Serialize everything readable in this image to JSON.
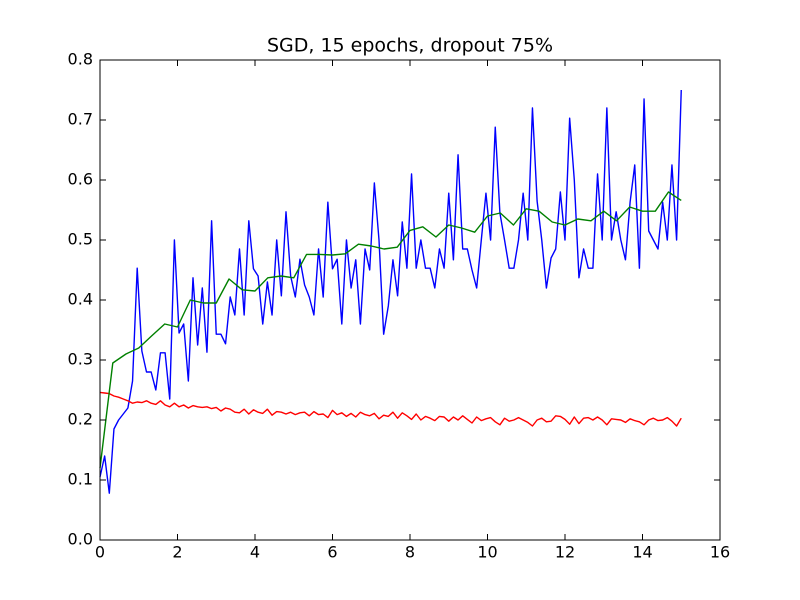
{
  "chart_data": {
    "type": "line",
    "title": "SGD, 15 epochs, dropout 75%",
    "xlim": [
      0,
      16
    ],
    "ylim": [
      0,
      0.8
    ],
    "xticks": [
      0,
      2,
      4,
      6,
      8,
      10,
      12,
      14,
      16
    ],
    "yticks": [
      {
        "value": 0,
        "label": "0.0"
      },
      0.1,
      0.2,
      0.3,
      0.4,
      0.5,
      0.6,
      0.7,
      0.8
    ],
    "grid": false,
    "series": [
      {
        "color": "#0000ff",
        "x": [
          0,
          0.12,
          0.24,
          0.36,
          0.48,
          0.6,
          0.72,
          0.84,
          0.96,
          1.08,
          1.2,
          1.32,
          1.44,
          1.56,
          1.68,
          1.8,
          1.92,
          2.04,
          2.16,
          2.28,
          2.4,
          2.52,
          2.64,
          2.76,
          2.88,
          3,
          3.12,
          3.24,
          3.36,
          3.48,
          3.6,
          3.72,
          3.84,
          3.96,
          4.08,
          4.2,
          4.32,
          4.44,
          4.56,
          4.68,
          4.8,
          4.92,
          5.04,
          5.16,
          5.28,
          5.4,
          5.52,
          5.64,
          5.76,
          5.88,
          6,
          6.12,
          6.24,
          6.36,
          6.48,
          6.6,
          6.72,
          6.84,
          6.96,
          7.08,
          7.2,
          7.32,
          7.44,
          7.56,
          7.68,
          7.8,
          7.92,
          8.04,
          8.16,
          8.28,
          8.4,
          8.52,
          8.64,
          8.76,
          8.88,
          9,
          9.12,
          9.24,
          9.36,
          9.48,
          9.6,
          9.72,
          9.84,
          9.96,
          10.08,
          10.2,
          10.32,
          10.44,
          10.56,
          10.68,
          10.8,
          10.92,
          11.04,
          11.16,
          11.28,
          11.4,
          11.52,
          11.64,
          11.76,
          11.88,
          12,
          12.12,
          12.24,
          12.36,
          12.48,
          12.6,
          12.72,
          12.84,
          12.96,
          13.08,
          13.2,
          13.32,
          13.44,
          13.56,
          13.68,
          13.8,
          13.92,
          14.04,
          14.16,
          14.28,
          14.4,
          14.52,
          14.64,
          14.76,
          14.88,
          15
        ],
        "values": [
          0.105,
          0.14,
          0.078,
          0.185,
          0.2,
          0.21,
          0.22,
          0.265,
          0.453,
          0.315,
          0.28,
          0.28,
          0.25,
          0.312,
          0.312,
          0.235,
          0.5,
          0.345,
          0.36,
          0.265,
          0.437,
          0.325,
          0.42,
          0.313,
          0.532,
          0.343,
          0.343,
          0.327,
          0.405,
          0.375,
          0.485,
          0.375,
          0.532,
          0.452,
          0.44,
          0.36,
          0.43,
          0.375,
          0.5,
          0.407,
          0.547,
          0.44,
          0.405,
          0.468,
          0.425,
          0.405,
          0.375,
          0.485,
          0.405,
          0.563,
          0.452,
          0.468,
          0.36,
          0.5,
          0.42,
          0.467,
          0.36,
          0.485,
          0.45,
          0.595,
          0.5,
          0.343,
          0.39,
          0.467,
          0.407,
          0.53,
          0.453,
          0.61,
          0.453,
          0.5,
          0.453,
          0.453,
          0.42,
          0.485,
          0.453,
          0.578,
          0.467,
          0.642,
          0.485,
          0.485,
          0.45,
          0.42,
          0.5,
          0.578,
          0.5,
          0.688,
          0.545,
          0.5,
          0.453,
          0.453,
          0.5,
          0.578,
          0.5,
          0.72,
          0.565,
          0.5,
          0.42,
          0.47,
          0.485,
          0.58,
          0.5,
          0.703,
          0.6,
          0.437,
          0.485,
          0.453,
          0.453,
          0.61,
          0.5,
          0.72,
          0.5,
          0.547,
          0.5,
          0.467,
          0.563,
          0.625,
          0.453,
          0.735,
          0.515,
          0.5,
          0.485,
          0.563,
          0.5,
          0.625,
          0.5,
          0.75
        ]
      },
      {
        "color": "#ff0000",
        "x": [
          0,
          0.12,
          0.24,
          0.36,
          0.48,
          0.6,
          0.72,
          0.84,
          0.96,
          1.08,
          1.2,
          1.32,
          1.44,
          1.56,
          1.68,
          1.8,
          1.92,
          2.04,
          2.16,
          2.28,
          2.4,
          2.52,
          2.64,
          2.76,
          2.88,
          3,
          3.12,
          3.24,
          3.36,
          3.48,
          3.6,
          3.72,
          3.84,
          3.96,
          4.08,
          4.2,
          4.32,
          4.44,
          4.56,
          4.68,
          4.8,
          4.92,
          5.04,
          5.16,
          5.28,
          5.4,
          5.52,
          5.64,
          5.76,
          5.88,
          6,
          6.12,
          6.24,
          6.36,
          6.48,
          6.6,
          6.72,
          6.84,
          6.96,
          7.08,
          7.2,
          7.32,
          7.44,
          7.56,
          7.68,
          7.8,
          7.92,
          8.04,
          8.16,
          8.28,
          8.4,
          8.52,
          8.64,
          8.76,
          8.88,
          9,
          9.12,
          9.24,
          9.36,
          9.48,
          9.6,
          9.72,
          9.84,
          9.96,
          10.08,
          10.2,
          10.32,
          10.44,
          10.56,
          10.68,
          10.8,
          10.92,
          11.04,
          11.16,
          11.28,
          11.4,
          11.52,
          11.64,
          11.76,
          11.88,
          12,
          12.12,
          12.24,
          12.36,
          12.48,
          12.6,
          12.72,
          12.84,
          12.96,
          13.08,
          13.2,
          13.32,
          13.44,
          13.56,
          13.68,
          13.8,
          13.92,
          14.04,
          14.16,
          14.28,
          14.4,
          14.52,
          14.64,
          14.76,
          14.88,
          15
        ],
        "values": [
          0.246,
          0.245,
          0.244,
          0.24,
          0.238,
          0.235,
          0.232,
          0.228,
          0.23,
          0.229,
          0.232,
          0.228,
          0.226,
          0.232,
          0.225,
          0.222,
          0.228,
          0.222,
          0.225,
          0.22,
          0.224,
          0.222,
          0.221,
          0.222,
          0.219,
          0.221,
          0.215,
          0.22,
          0.218,
          0.213,
          0.212,
          0.218,
          0.21,
          0.217,
          0.213,
          0.211,
          0.218,
          0.208,
          0.214,
          0.213,
          0.21,
          0.213,
          0.209,
          0.212,
          0.213,
          0.207,
          0.214,
          0.209,
          0.21,
          0.204,
          0.216,
          0.209,
          0.212,
          0.206,
          0.211,
          0.205,
          0.213,
          0.209,
          0.207,
          0.211,
          0.202,
          0.208,
          0.206,
          0.213,
          0.203,
          0.212,
          0.207,
          0.201,
          0.21,
          0.2,
          0.206,
          0.203,
          0.199,
          0.206,
          0.205,
          0.198,
          0.205,
          0.2,
          0.207,
          0.201,
          0.195,
          0.205,
          0.199,
          0.202,
          0.204,
          0.197,
          0.192,
          0.203,
          0.198,
          0.2,
          0.204,
          0.2,
          0.196,
          0.19,
          0.2,
          0.203,
          0.197,
          0.198,
          0.207,
          0.206,
          0.201,
          0.193,
          0.205,
          0.194,
          0.203,
          0.204,
          0.2,
          0.205,
          0.2,
          0.192,
          0.202,
          0.201,
          0.2,
          0.196,
          0.202,
          0.199,
          0.197,
          0.192,
          0.2,
          0.203,
          0.199,
          0.2,
          0.204,
          0.198,
          0.19,
          0.203
        ]
      },
      {
        "color": "#008000",
        "x": [
          0,
          0.33,
          0.67,
          1,
          1.33,
          1.67,
          2,
          2.33,
          2.67,
          3,
          3.33,
          3.67,
          4,
          4.33,
          4.67,
          5,
          5.33,
          5.67,
          6,
          6.33,
          6.67,
          7,
          7.33,
          7.67,
          8,
          8.33,
          8.67,
          9,
          9.33,
          9.67,
          10,
          10.33,
          10.67,
          11,
          11.33,
          11.67,
          12,
          12.33,
          12.67,
          13,
          13.33,
          13.67,
          14,
          14.33,
          14.67,
          15
        ],
        "values": [
          0.12,
          0.295,
          0.31,
          0.32,
          0.34,
          0.36,
          0.355,
          0.4,
          0.395,
          0.395,
          0.435,
          0.417,
          0.415,
          0.437,
          0.44,
          0.437,
          0.476,
          0.476,
          0.475,
          0.477,
          0.493,
          0.49,
          0.485,
          0.488,
          0.516,
          0.522,
          0.505,
          0.525,
          0.52,
          0.513,
          0.54,
          0.545,
          0.525,
          0.552,
          0.548,
          0.53,
          0.525,
          0.535,
          0.532,
          0.548,
          0.532,
          0.555,
          0.548,
          0.548,
          0.58,
          0.566
        ]
      }
    ]
  }
}
